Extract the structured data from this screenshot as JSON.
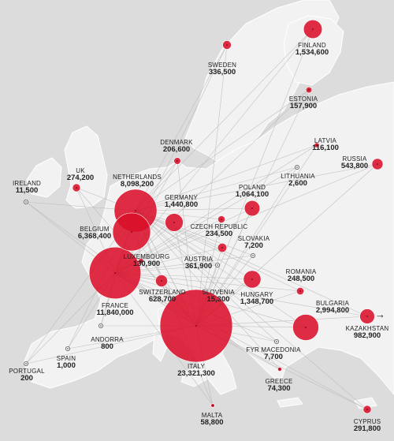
{
  "colors": {
    "sea": "#dcdcdc",
    "land": "#f2f2f2",
    "bubble": "#d9102a",
    "lines": "#b9b9b9"
  },
  "kazakhstan_arrow": "→",
  "countries": [
    {
      "id": "finland",
      "name": "FINLAND",
      "value": "1,534,600",
      "amount": 1534600
    },
    {
      "id": "sweden",
      "name": "SWEDEN",
      "value": "336,500",
      "amount": 336500
    },
    {
      "id": "estonia",
      "name": "ESTONIA",
      "value": "157,900",
      "amount": 157900
    },
    {
      "id": "latvia",
      "name": "LATVIA",
      "value": "116,100",
      "amount": 116100
    },
    {
      "id": "russia",
      "name": "RUSSIA",
      "value": "543,800",
      "amount": 543800
    },
    {
      "id": "denmark",
      "name": "DENMARK",
      "value": "206,600",
      "amount": 206600
    },
    {
      "id": "lithuania",
      "name": "LITHUANIA",
      "value": "2,600",
      "amount": 2600
    },
    {
      "id": "ireland",
      "name": "IRELAND",
      "value": "11,500",
      "amount": 11500
    },
    {
      "id": "uk",
      "name": "UK",
      "value": "274,200",
      "amount": 274200
    },
    {
      "id": "netherlands",
      "name": "NETHERLANDS",
      "value": "8,098,200",
      "amount": 8098200
    },
    {
      "id": "germany",
      "name": "GERMANY",
      "value": "1,440,800",
      "amount": 1440800
    },
    {
      "id": "poland",
      "name": "POLAND",
      "value": "1,064,100",
      "amount": 1064100
    },
    {
      "id": "belgium",
      "name": "BELGIUM",
      "value": "6,368,400",
      "amount": 6368400
    },
    {
      "id": "czech",
      "name": "CZECH REPUBLIC",
      "value": "234,500",
      "amount": 234500
    },
    {
      "id": "slovakia",
      "name": "SLOVAKIA",
      "value": "7,200",
      "amount": 7200
    },
    {
      "id": "luxembourg",
      "name": "LUXEMBOURG",
      "value": "130,900",
      "amount": 130900
    },
    {
      "id": "austria",
      "name": "AUSTRIA",
      "value": "361,900",
      "amount": 361900
    },
    {
      "id": "romania",
      "name": "ROMANIA",
      "value": "248,500",
      "amount": 248500
    },
    {
      "id": "switzerland",
      "name": "SWITZERLAND",
      "value": "628,700",
      "amount": 628700
    },
    {
      "id": "slovenia",
      "name": "SLOVENIA",
      "value": "15,300",
      "amount": 15300
    },
    {
      "id": "hungary",
      "name": "HUNGARY",
      "value": "1,348,700",
      "amount": 1348700
    },
    {
      "id": "france",
      "name": "FRANCE",
      "value": "11,840,000",
      "amount": 11840000
    },
    {
      "id": "bulgaria",
      "name": "BULGARIA",
      "value": "2,994,800",
      "amount": 2994800
    },
    {
      "id": "kazakhstan",
      "name": "KAZAKHSTAN",
      "value": "982,900",
      "amount": 982900
    },
    {
      "id": "andorra",
      "name": "ANDORRA",
      "value": "800",
      "amount": 800
    },
    {
      "id": "spain",
      "name": "SPAIN",
      "value": "1,000",
      "amount": 1000
    },
    {
      "id": "fyrmacedonia",
      "name": "FYR MACEDONIA",
      "value": "7,700",
      "amount": 7700
    },
    {
      "id": "portugal",
      "name": "PORTUGAL",
      "value": "200",
      "amount": 200
    },
    {
      "id": "italy",
      "name": "ITALY",
      "value": "23,321,300",
      "amount": 23321300
    },
    {
      "id": "greece",
      "name": "GREECE",
      "value": "74,300",
      "amount": 74300
    },
    {
      "id": "malta",
      "name": "MALTA",
      "value": "58,800",
      "amount": 58800
    },
    {
      "id": "cyprus",
      "name": "CYPRUS",
      "value": "291,800",
      "amount": 291800
    }
  ]
}
